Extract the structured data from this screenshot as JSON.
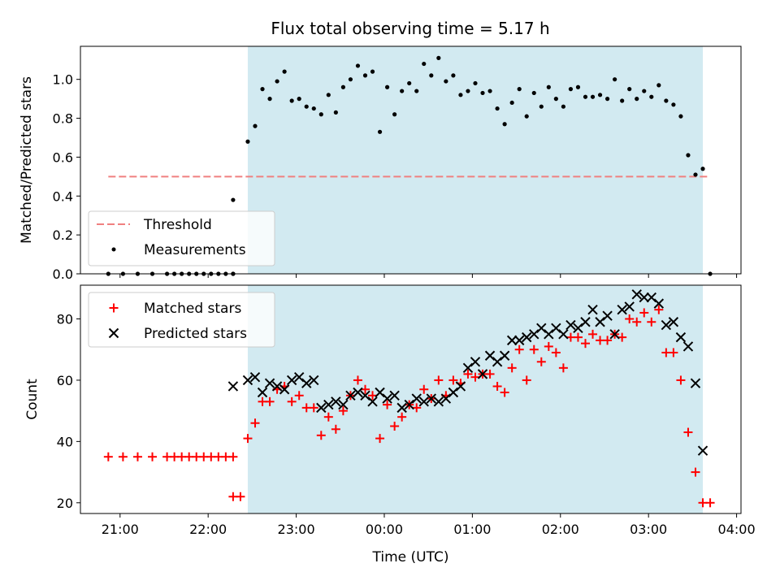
{
  "title": "Flux total observing time = 5.17 h",
  "xlabel": "Time (UTC)",
  "colors": {
    "shade": "#add8e6",
    "threshold": "#f08080",
    "measurements": "#000000",
    "matched": "#ff0000",
    "predicted": "#000000"
  },
  "chart_data": [
    {
      "type": "scatter",
      "panel": "top",
      "ylabel": "Matched/Predicted stars",
      "ylim": [
        0,
        1.17
      ],
      "yticks": [
        0.0,
        0.2,
        0.4,
        0.6,
        0.8,
        1.0
      ],
      "xticks": [
        "21:00",
        "22:00",
        "23:00",
        "00:00",
        "01:00",
        "02:00",
        "03:00",
        "04:00"
      ],
      "xlim": [
        "20:33",
        "04:03"
      ],
      "shaded_span": [
        "22:27",
        "03:37"
      ],
      "legend_position": "lower-left",
      "threshold": {
        "name": "Threshold",
        "value": 0.5,
        "x_range": [
          "20:52",
          "03:42"
        ]
      },
      "series": [
        {
          "name": "Measurements",
          "points": [
            [
              "20:52",
              0.0
            ],
            [
              "21:02",
              0.0
            ],
            [
              "21:12",
              0.0
            ],
            [
              "21:22",
              0.0
            ],
            [
              "21:32",
              0.0
            ],
            [
              "21:37",
              0.0
            ],
            [
              "21:42",
              0.0
            ],
            [
              "21:47",
              0.0
            ],
            [
              "21:52",
              0.0
            ],
            [
              "21:57",
              0.0
            ],
            [
              "22:02",
              0.0
            ],
            [
              "22:07",
              0.0
            ],
            [
              "22:12",
              0.0
            ],
            [
              "22:17",
              0.0
            ],
            [
              "22:17",
              0.0
            ],
            [
              "22:17",
              0.38
            ],
            [
              "22:27",
              0.68
            ],
            [
              "22:32",
              0.76
            ],
            [
              "22:37",
              0.95
            ],
            [
              "22:42",
              0.9
            ],
            [
              "22:47",
              0.99
            ],
            [
              "22:52",
              1.04
            ],
            [
              "22:57",
              0.89
            ],
            [
              "23:02",
              0.9
            ],
            [
              "23:07",
              0.86
            ],
            [
              "23:12",
              0.85
            ],
            [
              "23:17",
              0.82
            ],
            [
              "23:22",
              0.92
            ],
            [
              "23:27",
              0.83
            ],
            [
              "23:32",
              0.96
            ],
            [
              "23:37",
              1.0
            ],
            [
              "23:42",
              1.07
            ],
            [
              "23:47",
              1.02
            ],
            [
              "23:52",
              1.04
            ],
            [
              "23:57",
              0.73
            ],
            [
              "00:02",
              0.96
            ],
            [
              "00:07",
              0.82
            ],
            [
              "00:12",
              0.94
            ],
            [
              "00:17",
              0.98
            ],
            [
              "00:22",
              0.94
            ],
            [
              "00:27",
              1.08
            ],
            [
              "00:32",
              1.02
            ],
            [
              "00:37",
              1.11
            ],
            [
              "00:42",
              0.99
            ],
            [
              "00:47",
              1.02
            ],
            [
              "00:52",
              0.92
            ],
            [
              "00:57",
              0.94
            ],
            [
              "01:02",
              0.98
            ],
            [
              "01:07",
              0.93
            ],
            [
              "01:12",
              0.94
            ],
            [
              "01:17",
              0.85
            ],
            [
              "01:22",
              0.77
            ],
            [
              "01:27",
              0.88
            ],
            [
              "01:32",
              0.95
            ],
            [
              "01:37",
              0.81
            ],
            [
              "01:42",
              0.93
            ],
            [
              "01:47",
              0.86
            ],
            [
              "01:52",
              0.96
            ],
            [
              "01:57",
              0.9
            ],
            [
              "02:02",
              0.86
            ],
            [
              "02:07",
              0.95
            ],
            [
              "02:12",
              0.96
            ],
            [
              "02:17",
              0.91
            ],
            [
              "02:22",
              0.91
            ],
            [
              "02:27",
              0.92
            ],
            [
              "02:32",
              0.9
            ],
            [
              "02:37",
              1.0
            ],
            [
              "02:42",
              0.89
            ],
            [
              "02:47",
              0.95
            ],
            [
              "02:52",
              0.9
            ],
            [
              "02:57",
              0.94
            ],
            [
              "03:02",
              0.91
            ],
            [
              "03:07",
              0.97
            ],
            [
              "03:12",
              0.89
            ],
            [
              "03:17",
              0.87
            ],
            [
              "03:22",
              0.81
            ],
            [
              "03:27",
              0.61
            ],
            [
              "03:32",
              0.51
            ],
            [
              "03:37",
              0.54
            ],
            [
              "03:42",
              0.0
            ]
          ]
        }
      ]
    },
    {
      "type": "scatter",
      "panel": "bottom",
      "ylabel": "Count",
      "ylim": [
        16.5,
        91
      ],
      "yticks": [
        20,
        40,
        60,
        80
      ],
      "xticks": [
        "21:00",
        "22:00",
        "23:00",
        "00:00",
        "01:00",
        "02:00",
        "03:00",
        "04:00"
      ],
      "xlim": [
        "20:33",
        "04:03"
      ],
      "shaded_span": [
        "22:27",
        "03:37"
      ],
      "legend_position": "upper-left",
      "series": [
        {
          "name": "Matched stars",
          "marker": "+",
          "points": [
            [
              "20:52",
              35
            ],
            [
              "21:02",
              35
            ],
            [
              "21:12",
              35
            ],
            [
              "21:22",
              35
            ],
            [
              "21:32",
              35
            ],
            [
              "21:37",
              35
            ],
            [
              "21:42",
              35
            ],
            [
              "21:47",
              35
            ],
            [
              "21:52",
              35
            ],
            [
              "21:57",
              35
            ],
            [
              "22:02",
              35
            ],
            [
              "22:07",
              35
            ],
            [
              "22:12",
              35
            ],
            [
              "22:17",
              35
            ],
            [
              "22:17",
              22
            ],
            [
              "22:22",
              22
            ],
            [
              "22:27",
              41
            ],
            [
              "22:32",
              46
            ],
            [
              "22:37",
              53
            ],
            [
              "22:42",
              53
            ],
            [
              "22:47",
              57
            ],
            [
              "22:52",
              58
            ],
            [
              "22:57",
              53
            ],
            [
              "23:02",
              55
            ],
            [
              "23:07",
              51
            ],
            [
              "23:12",
              51
            ],
            [
              "23:17",
              42
            ],
            [
              "23:22",
              48
            ],
            [
              "23:27",
              44
            ],
            [
              "23:32",
              50
            ],
            [
              "23:37",
              55
            ],
            [
              "23:42",
              60
            ],
            [
              "23:47",
              57
            ],
            [
              "23:52",
              55
            ],
            [
              "23:57",
              41
            ],
            [
              "00:02",
              52
            ],
            [
              "00:07",
              45
            ],
            [
              "00:12",
              48
            ],
            [
              "00:17",
              52
            ],
            [
              "00:22",
              51
            ],
            [
              "00:27",
              57
            ],
            [
              "00:32",
              54
            ],
            [
              "00:37",
              60
            ],
            [
              "00:42",
              55
            ],
            [
              "00:47",
              60
            ],
            [
              "00:52",
              59
            ],
            [
              "00:57",
              62
            ],
            [
              "01:02",
              61
            ],
            [
              "01:07",
              62
            ],
            [
              "01:12",
              62
            ],
            [
              "01:17",
              58
            ],
            [
              "01:22",
              56
            ],
            [
              "01:27",
              64
            ],
            [
              "01:32",
              70
            ],
            [
              "01:37",
              60
            ],
            [
              "01:42",
              70
            ],
            [
              "01:47",
              66
            ],
            [
              "01:52",
              71
            ],
            [
              "01:57",
              69
            ],
            [
              "02:02",
              64
            ],
            [
              "02:07",
              74
            ],
            [
              "02:12",
              74
            ],
            [
              "02:17",
              72
            ],
            [
              "02:22",
              75
            ],
            [
              "02:27",
              73
            ],
            [
              "02:32",
              73
            ],
            [
              "02:37",
              75
            ],
            [
              "02:42",
              74
            ],
            [
              "02:47",
              80
            ],
            [
              "02:52",
              79
            ],
            [
              "02:57",
              82
            ],
            [
              "03:02",
              79
            ],
            [
              "03:07",
              83
            ],
            [
              "03:12",
              69
            ],
            [
              "03:17",
              69
            ],
            [
              "03:22",
              60
            ],
            [
              "03:27",
              43
            ],
            [
              "03:32",
              30
            ],
            [
              "03:37",
              20
            ],
            [
              "03:42",
              20
            ]
          ]
        },
        {
          "name": "Predicted stars",
          "marker": "x",
          "points": [
            [
              "22:17",
              58
            ],
            [
              "22:27",
              60
            ],
            [
              "22:32",
              61
            ],
            [
              "22:37",
              56
            ],
            [
              "22:42",
              59
            ],
            [
              "22:47",
              58
            ],
            [
              "22:52",
              57
            ],
            [
              "22:57",
              60
            ],
            [
              "23:02",
              61
            ],
            [
              "23:07",
              59
            ],
            [
              "23:12",
              60
            ],
            [
              "23:17",
              51
            ],
            [
              "23:22",
              52
            ],
            [
              "23:27",
              53
            ],
            [
              "23:32",
              52
            ],
            [
              "23:37",
              55
            ],
            [
              "23:42",
              56
            ],
            [
              "23:47",
              55
            ],
            [
              "23:52",
              53
            ],
            [
              "23:57",
              56
            ],
            [
              "00:02",
              54
            ],
            [
              "00:07",
              55
            ],
            [
              "00:12",
              51
            ],
            [
              "00:17",
              52
            ],
            [
              "00:22",
              54
            ],
            [
              "00:27",
              53
            ],
            [
              "00:32",
              54
            ],
            [
              "00:37",
              53
            ],
            [
              "00:42",
              54
            ],
            [
              "00:47",
              56
            ],
            [
              "00:52",
              58
            ],
            [
              "00:57",
              64
            ],
            [
              "01:02",
              66
            ],
            [
              "01:07",
              62
            ],
            [
              "01:12",
              68
            ],
            [
              "01:17",
              66
            ],
            [
              "01:22",
              68
            ],
            [
              "01:27",
              73
            ],
            [
              "01:32",
              73
            ],
            [
              "01:37",
              74
            ],
            [
              "01:42",
              75
            ],
            [
              "01:47",
              77
            ],
            [
              "01:52",
              75
            ],
            [
              "01:57",
              77
            ],
            [
              "02:02",
              75
            ],
            [
              "02:07",
              78
            ],
            [
              "02:12",
              77
            ],
            [
              "02:17",
              79
            ],
            [
              "02:22",
              83
            ],
            [
              "02:27",
              79
            ],
            [
              "02:32",
              81
            ],
            [
              "02:37",
              75
            ],
            [
              "02:42",
              83
            ],
            [
              "02:47",
              84
            ],
            [
              "02:52",
              88
            ],
            [
              "02:57",
              87
            ],
            [
              "03:02",
              87
            ],
            [
              "03:07",
              85
            ],
            [
              "03:12",
              78
            ],
            [
              "03:17",
              79
            ],
            [
              "03:22",
              74
            ],
            [
              "03:27",
              71
            ],
            [
              "03:32",
              59
            ],
            [
              "03:37",
              37
            ]
          ]
        }
      ]
    }
  ]
}
